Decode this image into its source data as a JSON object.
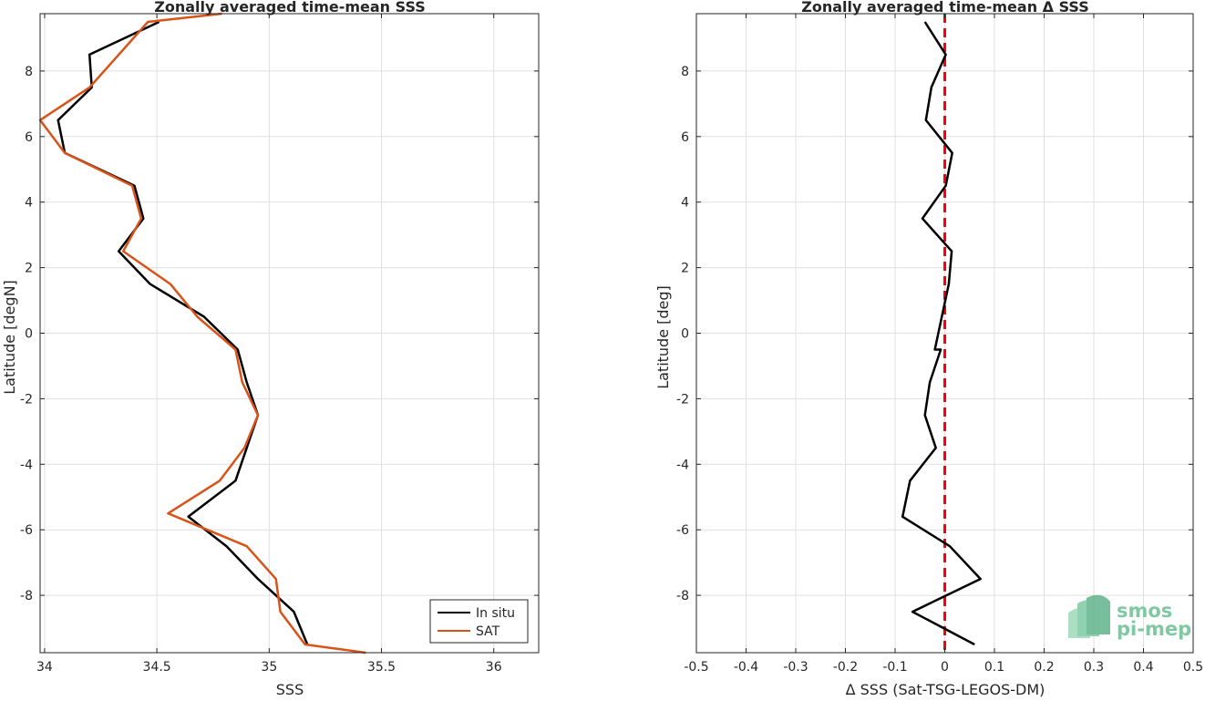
{
  "chart_data": [
    {
      "type": "line",
      "title": "Zonally averaged time-mean SSS",
      "xlabel": "SSS",
      "ylabel": "Latitude [degN]",
      "xlim": [
        33.98,
        36.2
      ],
      "ylim": [
        -9.75,
        9.75
      ],
      "xticks": [
        "34",
        "34.5",
        "35",
        "35.5",
        "36"
      ],
      "xtick_values": [
        34,
        34.5,
        35,
        35.5,
        36
      ],
      "yticks": [
        "8",
        "6",
        "4",
        "2",
        "0",
        "-2",
        "-4",
        "-6",
        "-8"
      ],
      "ytick_values": [
        8,
        6,
        4,
        2,
        0,
        -2,
        -4,
        -6,
        -8
      ],
      "grid": true,
      "legend_position": "bottom-right",
      "series": [
        {
          "name": "In situ",
          "color": "#000000",
          "x": [
            35.17,
            35.11,
            34.95,
            34.81,
            34.64,
            34.85,
            34.9,
            34.95,
            34.9,
            34.86,
            34.71,
            34.47,
            34.33,
            34.44,
            34.4,
            34.09,
            34.06,
            34.21,
            34.2,
            34.51
          ],
          "y": [
            -9.5,
            -8.5,
            -7.5,
            -6.5,
            -5.6,
            -4.5,
            -3.5,
            -2.5,
            -1.5,
            -0.5,
            0.5,
            1.5,
            2.5,
            3.5,
            4.5,
            5.5,
            6.5,
            7.5,
            8.5,
            9.5
          ]
        },
        {
          "name": "SAT",
          "color": "#d95319",
          "x": [
            35.43,
            35.16,
            35.05,
            35.03,
            34.9,
            34.55,
            34.78,
            34.89,
            34.95,
            34.88,
            34.85,
            34.68,
            34.56,
            34.35,
            34.43,
            34.39,
            34.09,
            33.98,
            34.2,
            34.46,
            34.79
          ],
          "y": [
            -9.75,
            -9.5,
            -8.5,
            -7.5,
            -6.5,
            -5.5,
            -4.5,
            -3.5,
            -2.5,
            -1.5,
            -0.5,
            0.5,
            1.5,
            2.5,
            3.5,
            4.5,
            5.5,
            6.5,
            7.5,
            9.5,
            9.75
          ]
        }
      ]
    },
    {
      "type": "line",
      "title": "Zonally averaged time-mean Δ SSS",
      "xlabel": "Δ SSS (Sat-TSG-LEGOS-DM)",
      "ylabel": "Latitude [deg]",
      "xlim": [
        -0.5,
        0.5
      ],
      "ylim": [
        -9.75,
        9.75
      ],
      "xticks": [
        "-0.5",
        "-0.4",
        "-0.3",
        "-0.2",
        "-0.1",
        "0",
        "0.1",
        "0.2",
        "0.3",
        "0.4",
        "0.5"
      ],
      "xtick_values": [
        -0.5,
        -0.4,
        -0.3,
        -0.2,
        -0.1,
        0,
        0.1,
        0.2,
        0.3,
        0.4,
        0.5
      ],
      "yticks": [
        "8",
        "6",
        "4",
        "2",
        "0",
        "-2",
        "-4",
        "-6",
        "-8"
      ],
      "ytick_values": [
        8,
        6,
        4,
        2,
        0,
        -2,
        -4,
        -6,
        -8
      ],
      "grid": true,
      "reference_line": {
        "x": 0,
        "color": "#ff0000",
        "style": "dashed"
      },
      "series": [
        {
          "color": "#000000",
          "x": [
            0.06,
            -0.065,
            0.072,
            0.01,
            -0.085,
            -0.07,
            -0.018,
            -0.04,
            -0.03,
            -0.008,
            -0.02,
            0.008,
            0.014,
            -0.045,
            0.002,
            0.015,
            -0.038,
            -0.027,
            0.002,
            -0.04
          ],
          "y": [
            -9.5,
            -8.5,
            -7.5,
            -6.5,
            -5.6,
            -4.5,
            -3.5,
            -2.5,
            -1.5,
            -0.5,
            -0.5,
            1.5,
            2.5,
            3.5,
            4.5,
            5.5,
            6.5,
            7.5,
            8.5,
            9.5
          ]
        }
      ]
    }
  ],
  "watermark": {
    "line1": "smos",
    "line2": "pi-mep",
    "color": "#5cb58a"
  }
}
